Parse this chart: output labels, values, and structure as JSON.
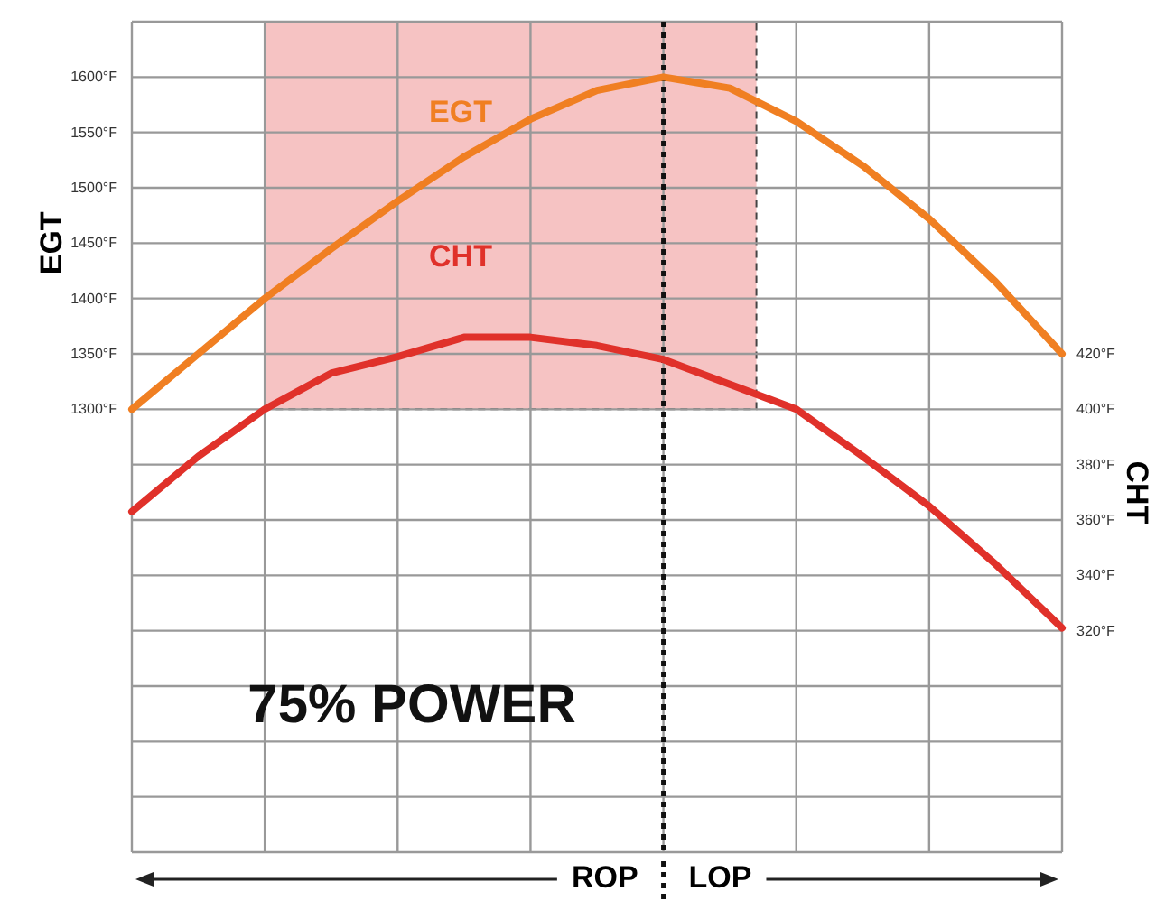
{
  "chart_data": {
    "type": "line",
    "ylabel": "EGT",
    "y2label": "CHT",
    "categories": [
      null,
      null,
      null,
      null,
      null,
      null,
      null,
      null,
      null,
      null,
      null,
      null,
      null,
      null,
      null
    ],
    "ylim": [
      900,
      1650
    ],
    "yticks": [
      {
        "value": 900,
        "label": null
      },
      {
        "value": 950,
        "label": null
      },
      {
        "value": 1000,
        "label": null
      },
      {
        "value": 1050,
        "label": null
      },
      {
        "value": 1100,
        "label": null
      },
      {
        "value": 1150,
        "label": null
      },
      {
        "value": 1200,
        "label": null
      },
      {
        "value": 1250,
        "label": null
      },
      {
        "value": 1300,
        "label": "1300°F"
      },
      {
        "value": 1350,
        "label": "1350°F"
      },
      {
        "value": 1400,
        "label": "1400°F"
      },
      {
        "value": 1450,
        "label": "1450°F"
      },
      {
        "value": 1500,
        "label": "1500°F"
      },
      {
        "value": 1550,
        "label": "1550°F"
      },
      {
        "value": 1600,
        "label": "1600°F"
      },
      {
        "value": 1650,
        "label": null
      }
    ],
    "y2lim": [
      240,
      540
    ],
    "y2ticks": [
      {
        "value": 320,
        "label": "320°F"
      },
      {
        "value": 340,
        "label": "340°F"
      },
      {
        "value": 360,
        "label": "360°F"
      },
      {
        "value": 380,
        "label": "380°F"
      },
      {
        "value": 400,
        "label": "400°F"
      },
      {
        "value": 420,
        "label": "420°F"
      }
    ],
    "series": [
      {
        "color": "#f07f22",
        "values": [
          1300,
          1350,
          1400,
          1445,
          1488,
          1528,
          1562,
          1588,
          1600,
          1590,
          1560,
          1520,
          1472,
          1415,
          1350
        ]
      },
      {
        "color": "#e0312a",
        "axis": "y2",
        "values": [
          363,
          383,
          400,
          413,
          419,
          426,
          426,
          423,
          418,
          409,
          400,
          383,
          365,
          344,
          321
        ]
      }
    ],
    "grid": true,
    "marker": "none",
    "line_style": "solid",
    "annotations": [
      "EGT",
      "CHT",
      "75% POWER",
      "ROP",
      "LOP"
    ]
  }
}
